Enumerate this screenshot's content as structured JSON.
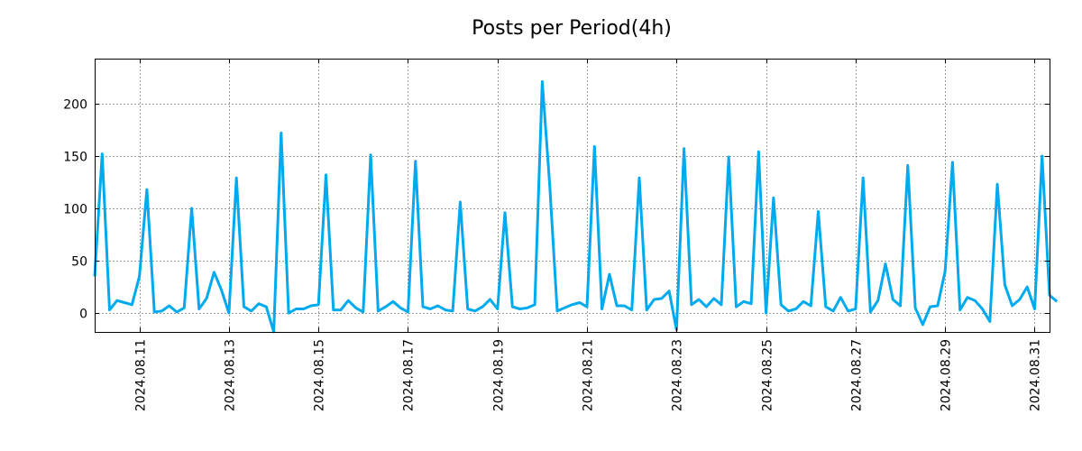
{
  "chart_data": {
    "type": "line",
    "title": "Posts per Period(4h)",
    "xlabel": "",
    "ylabel": "",
    "grid": true,
    "line_color": "#00aaee",
    "ylim": [
      -18,
      243
    ],
    "yticks": [
      0,
      50,
      100,
      150,
      200
    ],
    "xlim": [
      0,
      128
    ],
    "xticks": [
      {
        "x": 6,
        "label": "2024.08.11"
      },
      {
        "x": 18,
        "label": "2024.08.13"
      },
      {
        "x": 30,
        "label": "2024.08.15"
      },
      {
        "x": 42,
        "label": "2024.08.17"
      },
      {
        "x": 54,
        "label": "2024.08.19"
      },
      {
        "x": 66,
        "label": "2024.08.21"
      },
      {
        "x": 78,
        "label": "2024.08.23"
      },
      {
        "x": 90,
        "label": "2024.08.25"
      },
      {
        "x": 102,
        "label": "2024.08.27"
      },
      {
        "x": 114,
        "label": "2024.08.29"
      },
      {
        "x": 126,
        "label": "2024.08.31"
      }
    ],
    "series": [
      {
        "name": "posts",
        "values": [
          35,
          152,
          3,
          12,
          10,
          8,
          35,
          118,
          1,
          2,
          7,
          1,
          5,
          100,
          4,
          14,
          39,
          22,
          0,
          129,
          6,
          2,
          9,
          6,
          -18,
          172,
          0,
          4,
          4,
          7,
          8,
          132,
          3,
          3,
          12,
          5,
          1,
          151,
          2,
          6,
          11,
          5,
          1,
          145,
          6,
          4,
          7,
          3,
          2,
          106,
          4,
          2,
          6,
          13,
          4,
          96,
          6,
          4,
          5,
          8,
          221,
          122,
          2,
          5,
          8,
          10,
          6,
          159,
          4,
          37,
          7,
          7,
          3,
          129,
          3,
          13,
          14,
          21,
          -16,
          157,
          8,
          13,
          6,
          14,
          8,
          149,
          6,
          11,
          9,
          154,
          0,
          110,
          8,
          2,
          4,
          11,
          7,
          97,
          6,
          2,
          15,
          2,
          4,
          129,
          1,
          12,
          47,
          13,
          7,
          141,
          5,
          -11,
          6,
          7,
          40,
          144,
          3,
          15,
          12,
          4,
          -8,
          123,
          27,
          7,
          13,
          25,
          4,
          150,
          17,
          11
        ]
      }
    ]
  }
}
